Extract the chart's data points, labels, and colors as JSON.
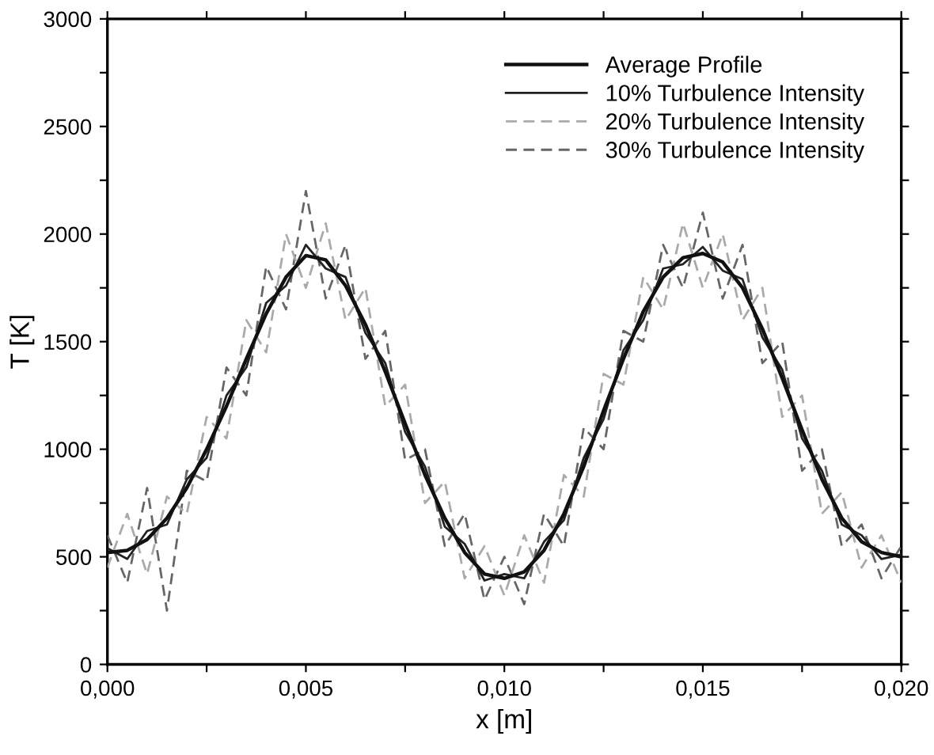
{
  "chart_data": {
    "type": "line",
    "xlabel": "x [m]",
    "ylabel": "T [K]",
    "x": [
      0,
      0.0005,
      0.001,
      0.0015,
      0.002,
      0.0025,
      0.003,
      0.0035,
      0.004,
      0.0045,
      0.005,
      0.0055,
      0.006,
      0.0065,
      0.007,
      0.0075,
      0.008,
      0.0085,
      0.009,
      0.0095,
      0.01,
      0.0105,
      0.011,
      0.0115,
      0.012,
      0.0125,
      0.013,
      0.0135,
      0.014,
      0.0145,
      0.015,
      0.0155,
      0.016,
      0.0165,
      0.017,
      0.0175,
      0.018,
      0.0185,
      0.019,
      0.0195,
      0.02
    ],
    "series": [
      {
        "name": "Average Profile",
        "color": "#111111",
        "line_style": "solid",
        "values": [
          520,
          530,
          580,
          680,
          820,
          1000,
          1200,
          1420,
          1630,
          1800,
          1900,
          1880,
          1760,
          1580,
          1360,
          1120,
          880,
          680,
          520,
          420,
          400,
          430,
          530,
          700,
          920,
          1180,
          1420,
          1640,
          1800,
          1890,
          1910,
          1870,
          1750,
          1560,
          1330,
          1090,
          860,
          680,
          570,
          520,
          500
        ]
      },
      {
        "name": "10% Turbulence Intensity",
        "color": "#222222",
        "line_style": "solid",
        "values": [
          540,
          490,
          620,
          650,
          860,
          960,
          1250,
          1380,
          1680,
          1760,
          1950,
          1840,
          1800,
          1540,
          1400,
          1080,
          920,
          640,
          560,
          390,
          420,
          400,
          570,
          670,
          960,
          1140,
          1460,
          1600,
          1840,
          1860,
          1940,
          1830,
          1790,
          1520,
          1370,
          1050,
          900,
          650,
          600,
          490,
          510
        ]
      },
      {
        "name": "20% Turbulence Intensity",
        "color": "#aaaaaa",
        "line_style": "dashed",
        "values": [
          450,
          700,
          420,
          780,
          700,
          1150,
          1050,
          1600,
          1450,
          2000,
          1750,
          2050,
          1600,
          1750,
          1200,
          1300,
          750,
          850,
          400,
          550,
          320,
          600,
          380,
          880,
          780,
          1350,
          1300,
          1800,
          1650,
          2050,
          1750,
          2000,
          1600,
          1750,
          1150,
          1250,
          700,
          800,
          450,
          600,
          380
        ]
      },
      {
        "name": "30% Turbulence Intensity",
        "color": "#666666",
        "line_style": "dashed",
        "values": [
          600,
          380,
          820,
          250,
          900,
          850,
          1380,
          1250,
          1850,
          1650,
          2200,
          1700,
          1950,
          1420,
          1550,
          950,
          1000,
          550,
          700,
          300,
          500,
          280,
          700,
          550,
          1100,
          1000,
          1550,
          1500,
          1950,
          1750,
          2100,
          1700,
          1950,
          1400,
          1500,
          900,
          1000,
          550,
          650,
          400,
          550
        ]
      }
    ],
    "xlim": [
      0,
      0.02
    ],
    "ylim": [
      0,
      3000
    ],
    "xticks": [
      {
        "value": 0,
        "label": "0,000"
      },
      {
        "value": 0.0025,
        "label": null
      },
      {
        "value": 0.005,
        "label": "0,005"
      },
      {
        "value": 0.0075,
        "label": null
      },
      {
        "value": 0.01,
        "label": "0,010"
      },
      {
        "value": 0.0125,
        "label": null
      },
      {
        "value": 0.015,
        "label": "0,015"
      },
      {
        "value": 0.0175,
        "label": null
      },
      {
        "value": 0.02,
        "label": "0,020"
      }
    ],
    "yticks": [
      0,
      {
        "value": 250,
        "label": null
      },
      500,
      {
        "value": 750,
        "label": null
      },
      1000,
      {
        "value": 1250,
        "label": null
      },
      1500,
      {
        "value": 1750,
        "label": null
      },
      2000,
      {
        "value": 2250,
        "label": null
      },
      2500,
      {
        "value": 2750,
        "label": null
      },
      3000
    ],
    "grid": false,
    "legend": "top right",
    "marker": "none"
  }
}
